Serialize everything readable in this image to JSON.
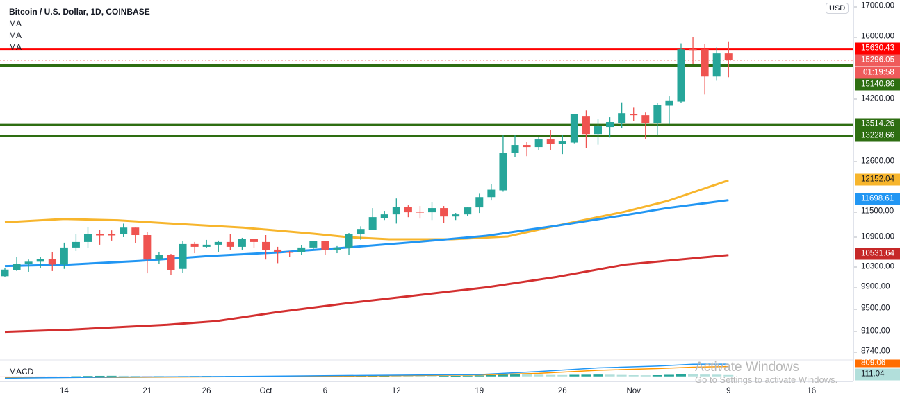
{
  "legend": {
    "title": "Bitcoin / U.S. Dollar, 1D, COINBASE",
    "ma1": "MA",
    "ma2": "MA",
    "ma3": "MA"
  },
  "currency": "USD",
  "colors": {
    "up": "#26a69a",
    "down": "#ef5350",
    "resistance": "#ff0000",
    "support": "#2e6e12",
    "ma_yellow": "#f7b52c",
    "ma_blue": "#2196f3",
    "ma_red": "#d32f2f"
  },
  "price_ticks": [
    "17000.00",
    "16000.00",
    "14200.00",
    "12600.00",
    "11500.00",
    "10900.00",
    "10300.00",
    "9900.00",
    "9500.00",
    "9100.00",
    "8740.00"
  ],
  "badges": {
    "resistance": "15630.43",
    "last_price": "15296.05",
    "countdown": "01:19:58",
    "support1": "15140.86",
    "support2": "13514.26",
    "support3": "13228.66",
    "ma_yellow": "12152.04",
    "ma_blue": "11698.61",
    "ma_red": "10531.64",
    "macd_signal": "809.06",
    "macd_hist": "111.04"
  },
  "levels": {
    "resistance": 15630.43,
    "last_price": 15296.05,
    "support": [
      15140.86,
      13514.26,
      13228.66
    ]
  },
  "time_labels": [
    {
      "label": "14",
      "day": 5
    },
    {
      "label": "21",
      "day": 12
    },
    {
      "label": "26",
      "day": 17
    },
    {
      "label": "Oct",
      "day": 22
    },
    {
      "label": "6",
      "day": 27
    },
    {
      "label": "12",
      "day": 33
    },
    {
      "label": "19",
      "day": 40
    },
    {
      "label": "26",
      "day": 47
    },
    {
      "label": "Nov",
      "day": 53
    },
    {
      "label": "9",
      "day": 61
    },
    {
      "label": "16",
      "day": 68
    }
  ],
  "macd": {
    "label": "MACD"
  },
  "watermark": {
    "line1": "Activate Windows",
    "line2": "Go to Settings to activate Windows."
  },
  "chart_data": {
    "type": "candlestick",
    "title": "Bitcoin / U.S. Dollar, 1D, COINBASE",
    "x_start": "Sep 9",
    "x_end": "Nov 9",
    "y_scale": "log",
    "ylim": [
      8600,
      17000
    ],
    "candles": [
      [
        10113,
        10270,
        10099,
        10242
      ],
      [
        10227,
        10499,
        10213,
        10356
      ],
      [
        10356,
        10442,
        10199,
        10399
      ],
      [
        10399,
        10499,
        10270,
        10456
      ],
      [
        10456,
        10599,
        10213,
        10342
      ],
      [
        10342,
        10785,
        10256,
        10685
      ],
      [
        10685,
        10971,
        10613,
        10799
      ],
      [
        10799,
        11114,
        10671,
        10971
      ],
      [
        10957,
        11057,
        10742,
        10942
      ],
      [
        10957,
        11042,
        10828,
        10942
      ],
      [
        10957,
        11185,
        10899,
        11100
      ],
      [
        11100,
        11100,
        10771,
        10942
      ],
      [
        10942,
        11014,
        10170,
        10442
      ],
      [
        10442,
        10599,
        10356,
        10542
      ],
      [
        10542,
        10556,
        10141,
        10227
      ],
      [
        10256,
        10814,
        10184,
        10756
      ],
      [
        10756,
        10799,
        10570,
        10699
      ],
      [
        10699,
        10842,
        10671,
        10742
      ],
      [
        10742,
        10828,
        10599,
        10799
      ],
      [
        10799,
        10971,
        10628,
        10699
      ],
      [
        10699,
        10885,
        10642,
        10856
      ],
      [
        10856,
        10856,
        10671,
        10799
      ],
      [
        10799,
        10942,
        10442,
        10628
      ],
      [
        10642,
        10699,
        10370,
        10599
      ],
      [
        10599,
        10613,
        10499,
        10585
      ],
      [
        10585,
        10728,
        10542,
        10685
      ],
      [
        10685,
        10814,
        10628,
        10814
      ],
      [
        10814,
        10814,
        10542,
        10642
      ],
      [
        10642,
        10714,
        10570,
        10685
      ],
      [
        10685,
        10985,
        10542,
        10957
      ],
      [
        10957,
        11128,
        10842,
        11071
      ],
      [
        11049,
        11523,
        11049,
        11325
      ],
      [
        11309,
        11462,
        11263,
        11385
      ],
      [
        11385,
        11737,
        11186,
        11554
      ],
      [
        11554,
        11584,
        11324,
        11431
      ],
      [
        11447,
        11569,
        11294,
        11431
      ],
      [
        11431,
        11661,
        11263,
        11523
      ],
      [
        11523,
        11569,
        11202,
        11339
      ],
      [
        11339,
        11416,
        11263,
        11385
      ],
      [
        11385,
        11538,
        11355,
        11538
      ],
      [
        11538,
        11844,
        11416,
        11768
      ],
      [
        11768,
        12058,
        11692,
        11936
      ],
      [
        11921,
        13246,
        11890,
        12814
      ],
      [
        12814,
        13246,
        12710,
        13004
      ],
      [
        13004,
        13074,
        12728,
        12952
      ],
      [
        12952,
        13195,
        12884,
        13143
      ],
      [
        13143,
        13385,
        12884,
        13039
      ],
      [
        13039,
        13264,
        12780,
        13091
      ],
      [
        13065,
        13803,
        13047,
        13803
      ],
      [
        13749,
        13893,
        12921,
        13281
      ],
      [
        13281,
        13677,
        13011,
        13479
      ],
      [
        13461,
        13713,
        13191,
        13587
      ],
      [
        13569,
        14109,
        13443,
        13821
      ],
      [
        13803,
        13965,
        13623,
        13767
      ],
      [
        13767,
        13839,
        13155,
        13569
      ],
      [
        13569,
        14091,
        13245,
        14037
      ],
      [
        14019,
        14271,
        13533,
        14163
      ],
      [
        14130,
        15798,
        14100,
        15616
      ],
      [
        15636,
        16000,
        15192,
        15596
      ],
      [
        15616,
        15778,
        14323,
        14828
      ],
      [
        14828,
        15676,
        14707,
        15495
      ],
      [
        15495,
        15858,
        14808,
        15296
      ]
    ],
    "candle_format": "[open, high, low, close]",
    "moving_averages": [
      {
        "name": "MA yellow",
        "color": "#f7b52c",
        "points": [
          [
            0,
            11214
          ],
          [
            5,
            11285
          ],
          [
            9.5,
            11257
          ],
          [
            14.2,
            11185
          ],
          [
            20.1,
            11100
          ],
          [
            26,
            10971
          ],
          [
            28.9,
            10899
          ],
          [
            32.4,
            10856
          ],
          [
            37.7,
            10856
          ],
          [
            42.4,
            10914
          ],
          [
            46.5,
            11140
          ],
          [
            52.3,
            11447
          ],
          [
            55.8,
            11676
          ],
          [
            61,
            12152
          ]
        ]
      },
      {
        "name": "MA blue",
        "color": "#2196f3",
        "points": [
          [
            0,
            10313
          ],
          [
            5.4,
            10342
          ],
          [
            11.3,
            10413
          ],
          [
            17.2,
            10513
          ],
          [
            23,
            10585
          ],
          [
            28.9,
            10685
          ],
          [
            34.7,
            10799
          ],
          [
            40.6,
            10928
          ],
          [
            46.5,
            11140
          ],
          [
            52.3,
            11370
          ],
          [
            55.8,
            11523
          ],
          [
            61,
            11699
          ]
        ]
      },
      {
        "name": "MA red",
        "color": "#d32f2f",
        "points": [
          [
            0,
            9090
          ],
          [
            5.4,
            9128
          ],
          [
            13.7,
            9216
          ],
          [
            17.8,
            9279
          ],
          [
            23,
            9442
          ],
          [
            28.9,
            9605
          ],
          [
            34.7,
            9750
          ],
          [
            40.6,
            9900
          ],
          [
            46.5,
            10099
          ],
          [
            52.3,
            10342
          ],
          [
            61,
            10532
          ]
        ]
      }
    ],
    "macd_histogram": [
      -30,
      -25,
      -20,
      -18,
      -10,
      -5,
      10,
      30,
      45,
      50,
      48,
      40,
      -5,
      15,
      10,
      20,
      25,
      30,
      28,
      30,
      22,
      18,
      15,
      12,
      14,
      16,
      18,
      20,
      25,
      30,
      35,
      40,
      45,
      42,
      38,
      30,
      28,
      32,
      40,
      55,
      70,
      100,
      150,
      170,
      160,
      140,
      120,
      110,
      130,
      140,
      150,
      140,
      120,
      100,
      90,
      100,
      130,
      200,
      170,
      150,
      140,
      111
    ],
    "macd_line": [
      [
        0,
        -150
      ],
      [
        10,
        -50
      ],
      [
        20,
        0
      ],
      [
        30,
        80
      ],
      [
        40,
        150
      ],
      [
        45,
        400
      ],
      [
        50,
        700
      ],
      [
        55,
        850
      ],
      [
        58,
        1000
      ],
      [
        61,
        1010
      ]
    ],
    "signal_line": [
      [
        0,
        -100
      ],
      [
        10,
        -80
      ],
      [
        20,
        -20
      ],
      [
        30,
        40
      ],
      [
        40,
        120
      ],
      [
        45,
        250
      ],
      [
        50,
        500
      ],
      [
        55,
        640
      ],
      [
        58,
        760
      ],
      [
        61,
        809
      ]
    ]
  }
}
